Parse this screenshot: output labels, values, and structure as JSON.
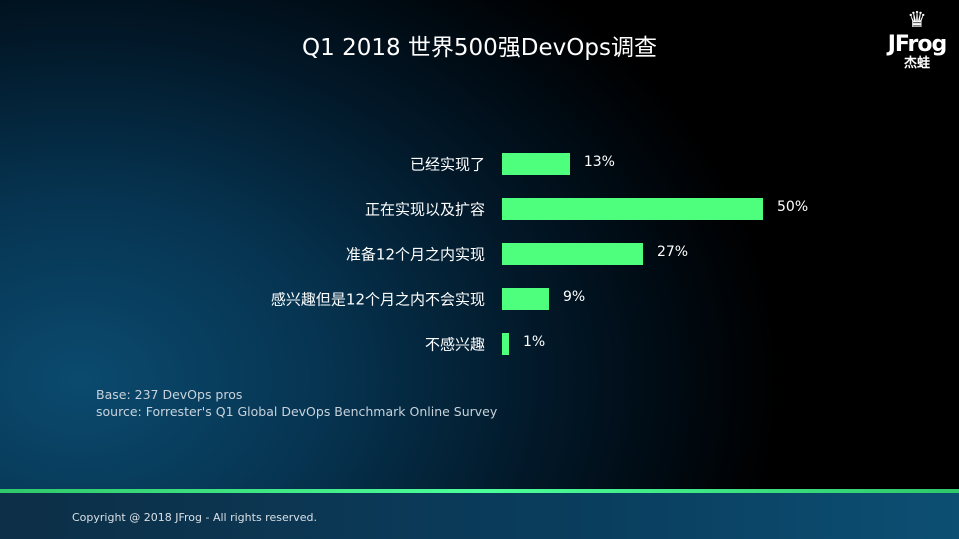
{
  "slide": {
    "title": "Q1 2018 世界500强DevOps调查",
    "logo": {
      "brand": "JFrog",
      "cn": "杰蛙"
    },
    "notes": [
      "Base: 237 DevOps pros",
      "source: Forrester's Q1 Global DevOps Benchmark Online Survey"
    ],
    "footer": "Copyright @ 2018 JFrog - All rights reserved."
  },
  "chart_data": {
    "type": "bar",
    "orientation": "horizontal",
    "categories": [
      "已经实现了",
      "正在实现以及扩容",
      "准备12个月之内实现",
      "感兴趣但是12个月之内不会实现",
      "不感兴趣"
    ],
    "values": [
      13,
      50,
      27,
      9,
      1
    ],
    "labels": [
      "13%",
      "50%",
      "27%",
      "9%",
      "1%"
    ],
    "unit": "%",
    "bar_color": "#4dff7d",
    "grid": false
  }
}
